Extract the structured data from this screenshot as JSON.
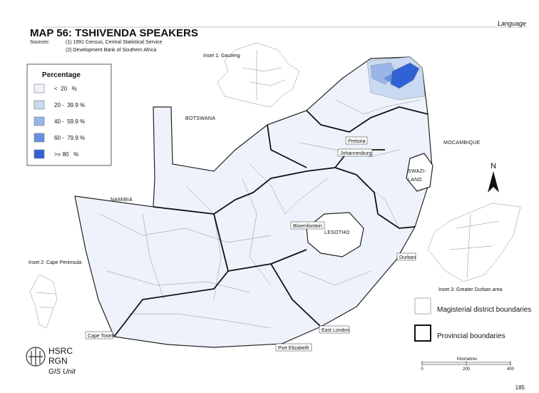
{
  "header": {
    "section": "Language",
    "title": "MAP 56: TSHIVENDA SPEAKERS",
    "sources_label": "Sources:",
    "sources": [
      "(1) 1991 Census, Central Statistical Service",
      "(2) Development Bank of Southern Africa"
    ]
  },
  "legend": {
    "title": "Percentage",
    "items": [
      {
        "label": "<  20   %",
        "color": "#eef3fb"
      },
      {
        "label": "20 -  39.9 %",
        "color": "#c9d9f2"
      },
      {
        "label": "40 -  59.9 %",
        "color": "#98b6ea"
      },
      {
        "label": "60 -  79.9 %",
        "color": "#6690e0"
      },
      {
        "label": ">= 80   %",
        "color": "#2f62d4"
      }
    ]
  },
  "countries": {
    "botswana": "BOTSWANA",
    "namibia": "NAMIBIA",
    "mocambique": "MOCAMBIQUE",
    "swaziland": [
      "SWAZI-",
      "LAND"
    ],
    "lesotho": "LESOTHO"
  },
  "cities": {
    "pretoria": "Pretoria",
    "johannesburg": "Johannesburg",
    "bloemfontein": "Bloemfontein",
    "durban": "Durban",
    "east_london": "East London",
    "port_elizabeth": "Port Elizabeth",
    "cape_town": "Cape Town"
  },
  "insets": [
    "Inset 1: Gauteng",
    "Inset 2: Cape Peninsula",
    "Inset 3: Greater Durban area"
  ],
  "boundaries": [
    "Magisterial district boundaries",
    "Provincial boundaries"
  ],
  "north": "N",
  "scale": {
    "title": "Kilometres",
    "ticks": [
      0,
      200,
      400
    ]
  },
  "logo": [
    "HSRC",
    "RGN",
    "GIS Unit"
  ],
  "page_number": 185
}
